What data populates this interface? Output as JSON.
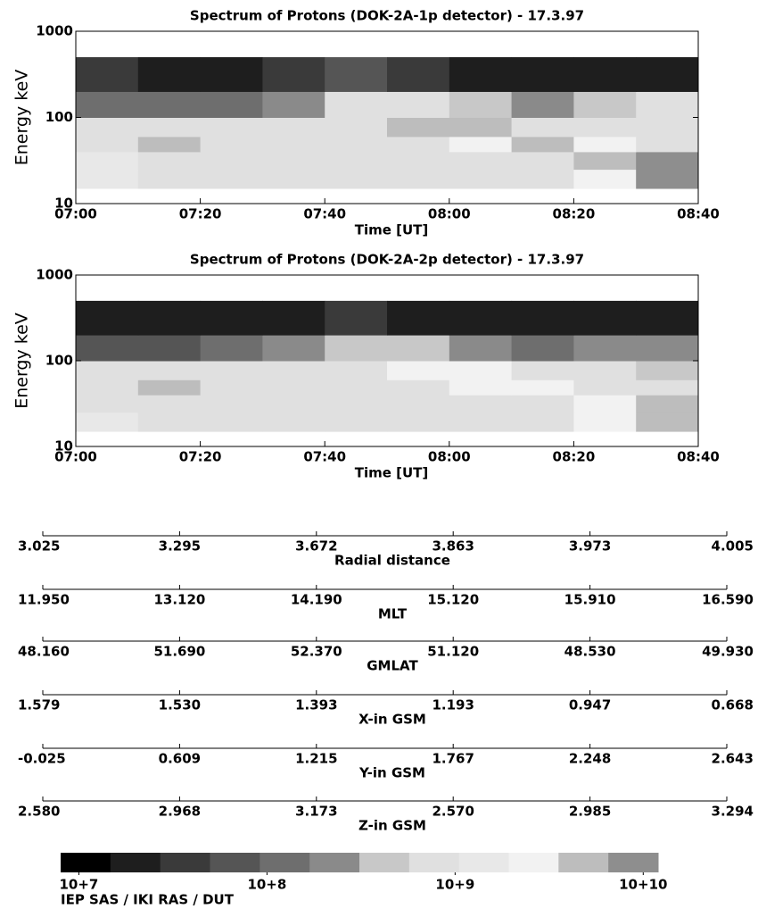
{
  "chart_data": [
    {
      "type": "heatmap",
      "title": "Spectrum of Protons (DOK-2A-1p detector) - 17.3.97",
      "x_label": "Time [UT]",
      "y_label": "Energy keV",
      "xlim": [
        420,
        520
      ],
      "xticks": [
        {
          "value": 420,
          "label": "07:00"
        },
        {
          "value": 440,
          "label": "07:20"
        },
        {
          "value": 460,
          "label": "07:40"
        },
        {
          "value": 480,
          "label": "08:00"
        },
        {
          "value": 500,
          "label": "08:20"
        },
        {
          "value": 520,
          "label": "08:40"
        }
      ],
      "ylim": [
        10,
        1000
      ],
      "yticks": [
        10,
        100,
        1000
      ],
      "log_y": true,
      "x_bins": [
        420,
        430,
        440,
        450,
        460,
        470,
        480,
        490,
        500,
        510,
        520
      ],
      "y_bins": [
        15,
        25,
        40,
        60,
        100,
        200,
        500
      ],
      "values": [
        [
          1500000000.0,
          800000000.0,
          800000000.0,
          800000000.0,
          800000000.0,
          800000000.0,
          800000000.0,
          800000000.0,
          3000000000.0,
          9000000000.0
        ],
        [
          1500000000.0,
          800000000.0,
          800000000.0,
          800000000.0,
          800000000.0,
          800000000.0,
          800000000.0,
          800000000.0,
          4000000000.0,
          10000000000.0
        ],
        [
          800000000.0,
          5000000000.0,
          800000000.0,
          800000000.0,
          800000000.0,
          800000000.0,
          3000000000.0,
          4000000000.0,
          3000000000.0,
          800000000.0
        ],
        [
          700000000.0,
          700000000.0,
          700000000.0,
          700000000.0,
          700000000.0,
          6000000000.0,
          4000000000.0,
          700000000.0,
          700000000.0,
          700000000.0
        ],
        [
          150000000.0,
          120000000.0,
          150000000.0,
          300000000.0,
          600000000.0,
          600000000.0,
          500000000.0,
          300000000.0,
          500000000.0,
          700000000.0
        ],
        [
          30000000.0,
          20000000.0,
          20000000.0,
          30000000.0,
          80000000.0,
          30000000.0,
          20000000.0,
          20000000.0,
          20000000.0,
          15000000.0
        ]
      ]
    },
    {
      "type": "heatmap",
      "title": "Spectrum of Protons (DOK-2A-2p detector) - 17.3.97",
      "x_label": "Time [UT]",
      "y_label": "Energy keV",
      "xlim": [
        420,
        520
      ],
      "xticks": [
        {
          "value": 420,
          "label": "07:00"
        },
        {
          "value": 440,
          "label": "07:20"
        },
        {
          "value": 460,
          "label": "07:40"
        },
        {
          "value": 480,
          "label": "08:00"
        },
        {
          "value": 500,
          "label": "08:20"
        },
        {
          "value": 520,
          "label": "08:40"
        }
      ],
      "ylim": [
        10,
        1000
      ],
      "yticks": [
        10,
        100,
        1000
      ],
      "log_y": true,
      "x_bins": [
        420,
        430,
        440,
        450,
        460,
        470,
        480,
        490,
        500,
        510,
        520
      ],
      "y_bins": [
        15,
        25,
        40,
        60,
        100,
        200,
        500
      ],
      "values": [
        [
          1500000000.0,
          800000000.0,
          800000000.0,
          800000000.0,
          800000000.0,
          800000000.0,
          800000000.0,
          800000000.0,
          2000000000.0,
          5000000000.0
        ],
        [
          1000000000.0,
          800000000.0,
          800000000.0,
          800000000.0,
          800000000.0,
          800000000.0,
          800000000.0,
          800000000.0,
          3000000000.0,
          6000000000.0
        ],
        [
          800000000.0,
          4000000000.0,
          800000000.0,
          800000000.0,
          800000000.0,
          800000000.0,
          3000000000.0,
          2000000000.0,
          1000000000.0,
          800000000.0
        ],
        [
          600000000.0,
          600000000.0,
          600000000.0,
          600000000.0,
          600000000.0,
          3000000000.0,
          2000000000.0,
          600000000.0,
          600000000.0,
          500000000.0
        ],
        [
          60000000.0,
          80000000.0,
          100000000.0,
          200000000.0,
          500000000.0,
          500000000.0,
          300000000.0,
          100000000.0,
          200000000.0,
          200000000.0
        ],
        [
          15000000.0,
          15000000.0,
          15000000.0,
          20000000.0,
          40000000.0,
          20000000.0,
          15000000.0,
          15000000.0,
          15000000.0,
          15000000.0
        ]
      ]
    }
  ],
  "colorbar": {
    "clim": [
      8000000.0,
      12000000000.0
    ],
    "log": true,
    "cticks": [
      {
        "value": 10000000.0,
        "label": "10+7"
      },
      {
        "value": 100000000.0,
        "label": "10+8"
      },
      {
        "value": 1000000000.0,
        "label": "10+9"
      },
      {
        "value": 10000000000.0,
        "label": "10+10"
      }
    ],
    "colors": [
      "#000000",
      "#1e1e1e",
      "#3a3a3a",
      "#555555",
      "#6e6e6e",
      "#8a8a8a",
      "#c8c8c8",
      "#e0e0e0",
      "#e8e8e8",
      "#f2f2f2",
      "#bdbdbd",
      "#8e8e8e"
    ]
  },
  "ephemeris": [
    {
      "label": "Radial distance",
      "values": [
        "3.025",
        "3.295",
        "3.672",
        "3.863",
        "3.973",
        "4.005"
      ]
    },
    {
      "label": "MLT",
      "values": [
        "11.950",
        "13.120",
        "14.190",
        "15.120",
        "15.910",
        "16.590"
      ]
    },
    {
      "label": "GMLAT",
      "values": [
        "48.160",
        "51.690",
        "52.370",
        "51.120",
        "48.530",
        "49.930"
      ]
    },
    {
      "label": "X-in GSM",
      "values": [
        "1.579",
        "1.530",
        "1.393",
        "1.193",
        "0.947",
        "0.668"
      ]
    },
    {
      "label": "Y-in GSM",
      "values": [
        "-0.025",
        "0.609",
        "1.215",
        "1.767",
        "2.248",
        "2.643"
      ]
    },
    {
      "label": "Z-in GSM",
      "values": [
        "2.580",
        "2.968",
        "3.173",
        "2.570",
        "2.985",
        "3.294"
      ]
    }
  ],
  "footer": "IEP SAS / IKI RAS / DUT"
}
